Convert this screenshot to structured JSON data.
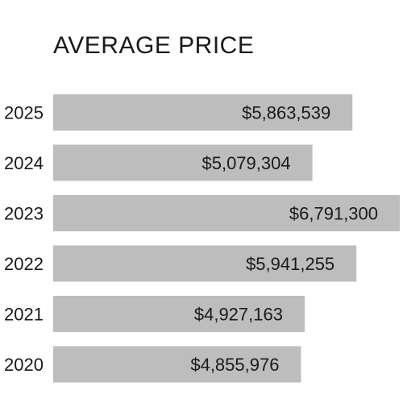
{
  "chart_data": {
    "type": "bar",
    "orientation": "horizontal",
    "title": "AVERAGE PRICE",
    "categories": [
      "2025",
      "2024",
      "2023",
      "2022",
      "2021",
      "2020"
    ],
    "values": [
      5863539,
      5079304,
      6791300,
      5941255,
      4927163,
      4855976
    ],
    "value_labels": [
      "$5,863,539",
      "$5,079,304",
      "$6,791,300",
      "$5,941,255",
      "$4,927,163",
      "$4,855,976"
    ],
    "xlabel": "",
    "ylabel": "",
    "grid": false,
    "legend": "none",
    "bar_color": "#bdbdbd",
    "text_color": "#1a1a1a"
  }
}
